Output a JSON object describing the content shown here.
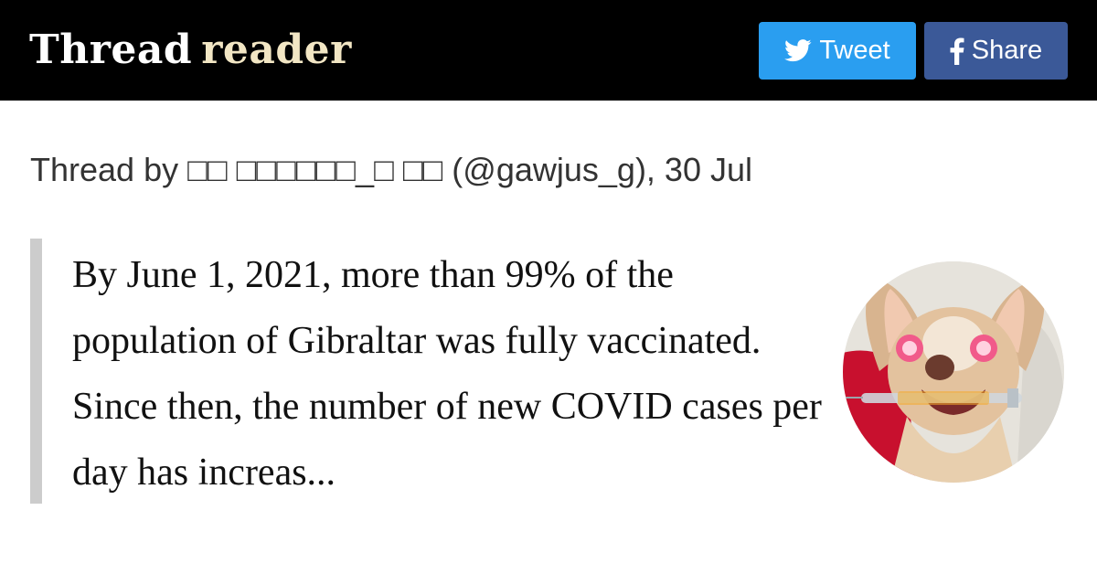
{
  "header": {
    "logo_word1": "Thread",
    "logo_word2": "reader",
    "tweet_label": "Tweet",
    "share_label": "Share",
    "tweet_icon": "twitter-bird-icon",
    "share_icon": "facebook-f-icon"
  },
  "thread": {
    "byline": "Thread by □□ □□□□□□_□ □□ (@gawjus_g), 30 Jul",
    "text": "By June 1, 2021, more than 99% of the population of Gibraltar was fully vaccinated. Since then, the number of new COVID cases per day has increas..."
  },
  "avatar": {
    "description_icon": "user-avatar-image"
  },
  "colors": {
    "header_bg": "#000000",
    "logo_accent": "#f2e6c4",
    "tweet_button": "#2a9ef0",
    "share_button": "#3b5998",
    "quote_bar": "#cccccc"
  }
}
